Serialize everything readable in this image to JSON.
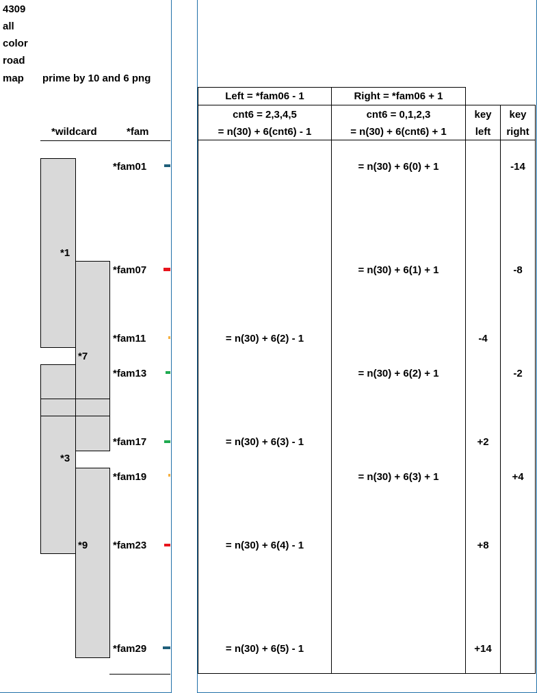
{
  "left_sheet": {
    "title_lines": [
      "4309",
      "all",
      "color",
      "road",
      "map"
    ],
    "subtitle": "prime by 10 and 6 png",
    "col_wildcard": "*wildcard",
    "col_fam": "*fam",
    "wildcards": [
      "*1",
      "*7",
      "*3",
      "*9"
    ],
    "families": [
      {
        "label": "*fam01",
        "color": "#1f5f7a"
      },
      {
        "label": "*fam07",
        "color": "#e8141c"
      },
      {
        "label": "*fam11",
        "color": "#f5b041"
      },
      {
        "label": "*fam13",
        "color": "#1faa50"
      },
      {
        "label": "*fam17",
        "color": "#1faa50"
      },
      {
        "label": "*fam19",
        "color": "#f5b041"
      },
      {
        "label": "*fam23",
        "color": "#e8141c"
      },
      {
        "label": "*fam29",
        "color": "#1f5f7a"
      }
    ]
  },
  "right_sheet": {
    "left_header": "Left = *fam06 - 1",
    "right_header": "Right = *fam06 + 1",
    "left_cnt": "cnt6 = 2,3,4,5",
    "left_formula": "= n(30) + 6(cnt6) - 1",
    "right_cnt": "cnt6 = 0,1,2,3",
    "right_formula": "= n(30) + 6(cnt6) + 1",
    "key_left_1": "key",
    "key_left_2": "left",
    "key_right_1": "key",
    "key_right_2": "right",
    "rows": [
      {
        "left": "",
        "right": "= n(30) + 6(0) + 1",
        "key_left": "",
        "key_right": "-14"
      },
      {
        "left": "",
        "right": "= n(30) + 6(1) + 1",
        "key_left": "",
        "key_right": "-8"
      },
      {
        "left": "= n(30) + 6(2) - 1",
        "right": "",
        "key_left": "-4",
        "key_right": ""
      },
      {
        "left": "",
        "right": "= n(30) + 6(2) + 1",
        "key_left": "",
        "key_right": "-2"
      },
      {
        "left": "= n(30) + 6(3) - 1",
        "right": "",
        "key_left": "+2",
        "key_right": ""
      },
      {
        "left": "",
        "right": "= n(30) + 6(3) + 1",
        "key_left": "",
        "key_right": "+4"
      },
      {
        "left": "= n(30) + 6(4) - 1",
        "right": "",
        "key_left": "+8",
        "key_right": ""
      },
      {
        "left": "= n(30) + 6(5) - 1",
        "right": "",
        "key_left": "+14",
        "key_right": ""
      }
    ]
  }
}
